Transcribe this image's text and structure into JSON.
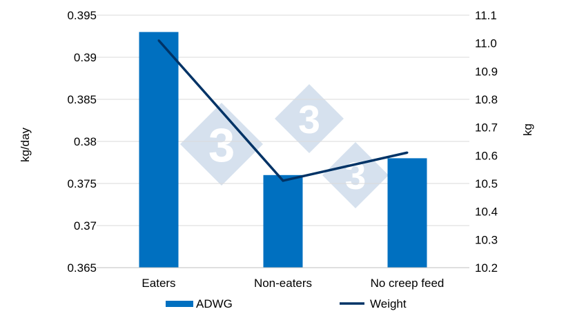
{
  "chart_data": {
    "type": "bar",
    "categories": [
      "Eaters",
      "Non-eaters",
      "No creep feed"
    ],
    "series": [
      {
        "name": "ADWG",
        "type": "bar",
        "axis": "left",
        "values": [
          0.393,
          0.376,
          0.378
        ]
      },
      {
        "name": "Weight",
        "type": "line",
        "axis": "right",
        "values": [
          11.01,
          10.51,
          10.61
        ]
      }
    ],
    "ylabel": "kg/day",
    "y2label": "kg",
    "ylim": [
      0.365,
      0.395
    ],
    "y2lim": [
      10.2,
      11.1
    ],
    "yticks": [
      "0.365",
      "0.37",
      "0.375",
      "0.38",
      "0.385",
      "0.39",
      "0.395"
    ],
    "y2ticks": [
      "10.2",
      "10.3",
      "10.4",
      "10.5",
      "10.6",
      "10.7",
      "10.8",
      "10.9",
      "11.0",
      "11.1"
    ],
    "grid": true,
    "legend_position": "bottom",
    "colors": {
      "bar": "#0070c0",
      "line": "#003366",
      "grid": "#d9d9d9",
      "watermark": "#d6e1ee"
    }
  }
}
